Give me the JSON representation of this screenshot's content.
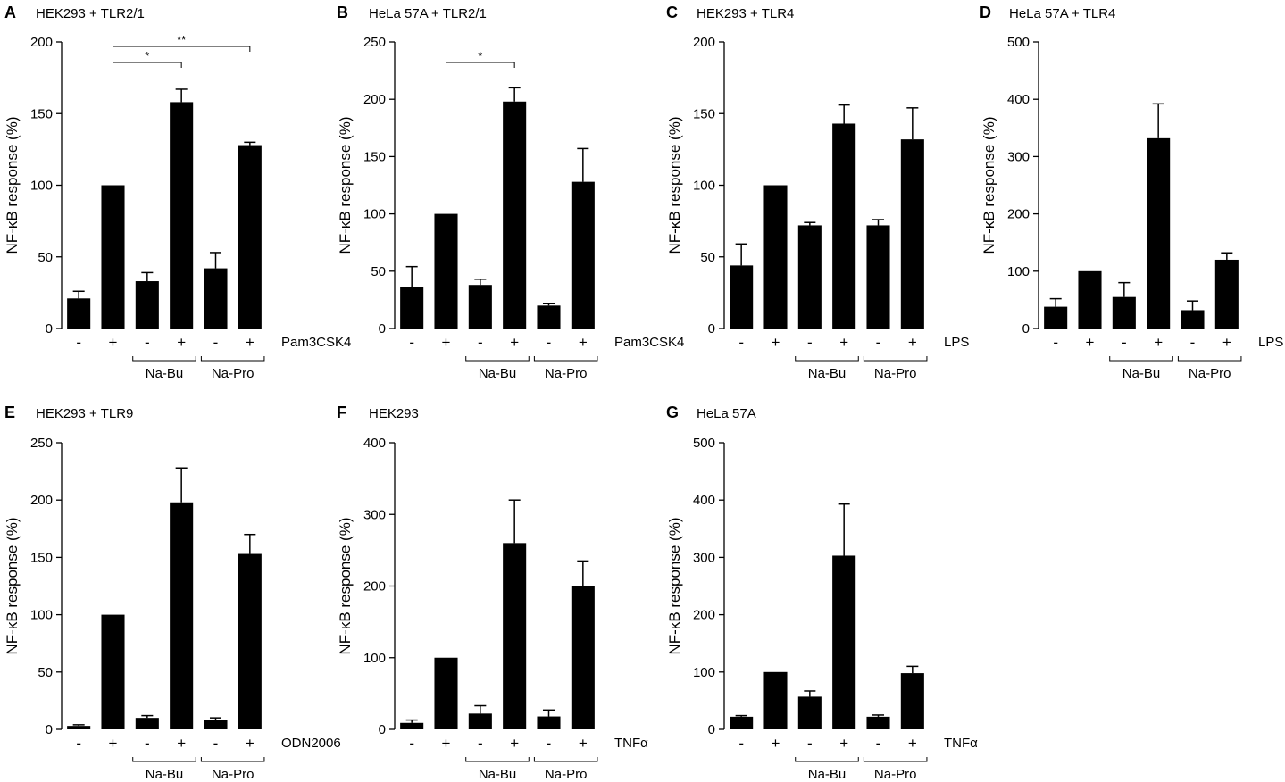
{
  "chart_data": [
    {
      "letter": "A",
      "title": "HEK293 + TLR2/1",
      "type": "bar",
      "ylabel": "NF-κB response (%)",
      "ylim": [
        0,
        200
      ],
      "yticks": [
        "0",
        "50",
        "100",
        "150",
        "200"
      ],
      "categories": [
        "-",
        "+",
        "-",
        "+",
        "-",
        "+"
      ],
      "values": [
        21,
        100,
        33,
        158,
        42,
        128
      ],
      "errors": [
        5,
        0,
        6,
        9,
        11,
        2
      ],
      "stimulus": "Pam3CSK4",
      "groups": [
        "Na-Bu",
        "Na-Pro"
      ],
      "significance": [
        {
          "from_bar": 1,
          "to_bar": 3,
          "label": "*"
        },
        {
          "from_bar": 1,
          "to_bar": 5,
          "label": "**"
        }
      ]
    },
    {
      "letter": "B",
      "title": "HeLa 57A + TLR2/1",
      "type": "bar",
      "ylabel": "NF-κB response (%)",
      "ylim": [
        0,
        250
      ],
      "yticks": [
        "0",
        "50",
        "100",
        "150",
        "200",
        "250"
      ],
      "categories": [
        "-",
        "+",
        "-",
        "+",
        "-",
        "+"
      ],
      "values": [
        36,
        100,
        38,
        198,
        20,
        128
      ],
      "errors": [
        18,
        0,
        5,
        12,
        2,
        29
      ],
      "stimulus": "Pam3CSK4",
      "groups": [
        "Na-Bu",
        "Na-Pro"
      ],
      "significance": [
        {
          "from_bar": 1,
          "to_bar": 3,
          "label": "*"
        }
      ]
    },
    {
      "letter": "C",
      "title": "HEK293 + TLR4",
      "type": "bar",
      "ylabel": "NF-κB response (%)",
      "ylim": [
        0,
        200
      ],
      "yticks": [
        "0",
        "50",
        "100",
        "150",
        "200"
      ],
      "categories": [
        "-",
        "+",
        "-",
        "+",
        "-",
        "+"
      ],
      "values": [
        44,
        100,
        72,
        143,
        72,
        132
      ],
      "errors": [
        15,
        0,
        2,
        13,
        4,
        22
      ],
      "stimulus": "LPS",
      "groups": [
        "Na-Bu",
        "Na-Pro"
      ],
      "significance": []
    },
    {
      "letter": "D",
      "title": "HeLa 57A + TLR4",
      "type": "bar",
      "ylabel": "NF-κB response (%)",
      "ylim": [
        0,
        500
      ],
      "yticks": [
        "0",
        "100",
        "200",
        "300",
        "400",
        "500"
      ],
      "categories": [
        "-",
        "+",
        "-",
        "+",
        "-",
        "+"
      ],
      "values": [
        38,
        100,
        55,
        332,
        32,
        120
      ],
      "errors": [
        14,
        0,
        25,
        60,
        16,
        12
      ],
      "stimulus": "LPS",
      "groups": [
        "Na-Bu",
        "Na-Pro"
      ],
      "significance": []
    },
    {
      "letter": "E",
      "title": "HEK293 + TLR9",
      "type": "bar",
      "ylabel": "NF-κB response (%)",
      "ylim": [
        0,
        250
      ],
      "yticks": [
        "0",
        "50",
        "100",
        "150",
        "200",
        "250"
      ],
      "categories": [
        "-",
        "+",
        "-",
        "+",
        "-",
        "+"
      ],
      "values": [
        3,
        100,
        10,
        198,
        8,
        153
      ],
      "errors": [
        1,
        0,
        2,
        30,
        2,
        17
      ],
      "stimulus": "ODN2006",
      "groups": [
        "Na-Bu",
        "Na-Pro"
      ],
      "significance": []
    },
    {
      "letter": "F",
      "title": "HEK293",
      "type": "bar",
      "ylabel": "NF-κB response (%)",
      "ylim": [
        0,
        400
      ],
      "yticks": [
        "0",
        "100",
        "200",
        "300",
        "400"
      ],
      "categories": [
        "-",
        "+",
        "-",
        "+",
        "-",
        "+"
      ],
      "values": [
        9,
        100,
        22,
        260,
        18,
        200
      ],
      "errors": [
        4,
        0,
        11,
        60,
        9,
        35
      ],
      "stimulus": "TNFα",
      "groups": [
        "Na-Bu",
        "Na-Pro"
      ],
      "significance": []
    },
    {
      "letter": "G",
      "title": "HeLa 57A",
      "type": "bar",
      "ylabel": "NF-κB response (%)",
      "ylim": [
        0,
        500
      ],
      "yticks": [
        "0",
        "100",
        "200",
        "300",
        "400",
        "500"
      ],
      "categories": [
        "-",
        "+",
        "-",
        "+",
        "-",
        "+"
      ],
      "values": [
        22,
        100,
        57,
        303,
        22,
        98
      ],
      "errors": [
        2,
        0,
        10,
        90,
        3,
        12
      ],
      "stimulus": "TNFα",
      "groups": [
        "Na-Bu",
        "Na-Pro"
      ],
      "significance": []
    }
  ]
}
